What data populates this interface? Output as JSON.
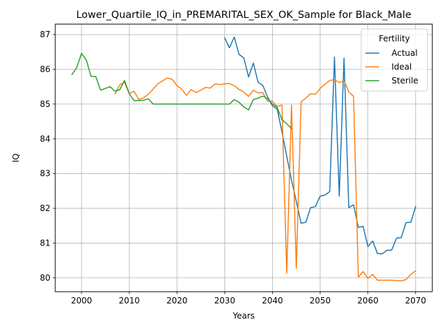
{
  "chart_data": {
    "type": "line",
    "title": "Lower_Quartile_IQ_in_PREMARITAL_SEX_OK_Sample for Black_Male",
    "xlabel": "Years",
    "ylabel": "IQ",
    "xlim": [
      1994.5,
      2073.5
    ],
    "ylim": [
      79.6,
      87.3
    ],
    "xticks": [
      2000,
      2010,
      2020,
      2030,
      2040,
      2050,
      2060,
      2070
    ],
    "yticks": [
      80,
      81,
      82,
      83,
      84,
      85,
      86,
      87
    ],
    "grid": true,
    "legend": {
      "title": "Fertility",
      "position": "top-right"
    },
    "series": [
      {
        "name": "Actual",
        "color": "#1f77b4",
        "points": [
          [
            2030,
            86.9
          ],
          [
            2031,
            86.62
          ],
          [
            2032,
            86.93
          ],
          [
            2033,
            86.43
          ],
          [
            2034,
            86.33
          ],
          [
            2035,
            85.78
          ],
          [
            2036,
            86.18
          ],
          [
            2037,
            85.63
          ],
          [
            2038,
            85.53
          ],
          [
            2039,
            85.2
          ],
          [
            2040,
            84.95
          ],
          [
            2041,
            84.85
          ],
          [
            2042,
            84.2
          ],
          [
            2043,
            83.5
          ],
          [
            2044,
            82.8
          ],
          [
            2045,
            82.2
          ],
          [
            2046,
            81.57
          ],
          [
            2047,
            81.6
          ],
          [
            2048,
            82.02
          ],
          [
            2049,
            82.05
          ],
          [
            2050,
            82.35
          ],
          [
            2051,
            82.38
          ],
          [
            2052,
            82.48
          ],
          [
            2053,
            86.35
          ],
          [
            2054,
            82.35
          ],
          [
            2055,
            86.32
          ],
          [
            2056,
            82.02
          ],
          [
            2057,
            82.1
          ],
          [
            2058,
            81.45
          ],
          [
            2059,
            81.48
          ],
          [
            2060,
            80.9
          ],
          [
            2061,
            81.06
          ],
          [
            2062,
            80.7
          ],
          [
            2063,
            80.69
          ],
          [
            2064,
            80.79
          ],
          [
            2065,
            80.8
          ],
          [
            2066,
            81.14
          ],
          [
            2067,
            81.16
          ],
          [
            2068,
            81.59
          ],
          [
            2069,
            81.6
          ],
          [
            2070,
            82.05
          ]
        ]
      },
      {
        "name": "Ideal",
        "color": "#ff7f0e",
        "points": [
          [
            2007,
            85.29
          ],
          [
            2008,
            85.55
          ],
          [
            2009,
            85.63
          ],
          [
            2010,
            85.3
          ],
          [
            2011,
            85.37
          ],
          [
            2012,
            85.13
          ],
          [
            2013,
            85.18
          ],
          [
            2014,
            85.28
          ],
          [
            2015,
            85.43
          ],
          [
            2016,
            85.58
          ],
          [
            2017,
            85.67
          ],
          [
            2018,
            85.75
          ],
          [
            2019,
            85.71
          ],
          [
            2020,
            85.53
          ],
          [
            2021,
            85.43
          ],
          [
            2022,
            85.25
          ],
          [
            2023,
            85.42
          ],
          [
            2024,
            85.33
          ],
          [
            2025,
            85.4
          ],
          [
            2026,
            85.48
          ],
          [
            2027,
            85.46
          ],
          [
            2028,
            85.58
          ],
          [
            2029,
            85.56
          ],
          [
            2030,
            85.58
          ],
          [
            2031,
            85.59
          ],
          [
            2032,
            85.53
          ],
          [
            2033,
            85.42
          ],
          [
            2034,
            85.35
          ],
          [
            2035,
            85.22
          ],
          [
            2036,
            85.4
          ],
          [
            2037,
            85.32
          ],
          [
            2038,
            85.33
          ],
          [
            2039,
            85.08
          ],
          [
            2040,
            85.08
          ],
          [
            2041,
            84.93
          ],
          [
            2042,
            84.97
          ],
          [
            2043,
            80.13
          ],
          [
            2044,
            84.97
          ],
          [
            2045,
            80.27
          ],
          [
            2046,
            85.06
          ],
          [
            2047,
            85.17
          ],
          [
            2048,
            85.3
          ],
          [
            2049,
            85.28
          ],
          [
            2050,
            85.45
          ],
          [
            2051,
            85.57
          ],
          [
            2052,
            85.68
          ],
          [
            2053,
            85.7
          ],
          [
            2054,
            85.62
          ],
          [
            2055,
            85.67
          ],
          [
            2056,
            85.35
          ],
          [
            2057,
            85.22
          ],
          [
            2058,
            80.02
          ],
          [
            2059,
            80.18
          ],
          [
            2060,
            79.98
          ],
          [
            2061,
            80.1
          ],
          [
            2062,
            79.93
          ],
          [
            2063,
            79.93
          ],
          [
            2064,
            79.93
          ],
          [
            2065,
            79.93
          ],
          [
            2066,
            79.92
          ],
          [
            2067,
            79.91
          ],
          [
            2068,
            79.95
          ],
          [
            2069,
            80.1
          ],
          [
            2070,
            80.2
          ]
        ]
      },
      {
        "name": "Sterile",
        "color": "#2ca02c",
        "points": [
          [
            1998,
            85.85
          ],
          [
            1999,
            86.05
          ],
          [
            2000,
            86.46
          ],
          [
            2001,
            86.27
          ],
          [
            2002,
            85.8
          ],
          [
            2003,
            85.79
          ],
          [
            2004,
            85.4
          ],
          [
            2005,
            85.45
          ],
          [
            2006,
            85.5
          ],
          [
            2007,
            85.37
          ],
          [
            2008,
            85.41
          ],
          [
            2009,
            85.68
          ],
          [
            2010,
            85.3
          ],
          [
            2011,
            85.1
          ],
          [
            2012,
            85.1
          ],
          [
            2013,
            85.11
          ],
          [
            2014,
            85.15
          ],
          [
            2015,
            85.0
          ],
          [
            2016,
            85.0
          ],
          [
            2017,
            85.0
          ],
          [
            2018,
            85.0
          ],
          [
            2019,
            85.0
          ],
          [
            2020,
            85.0
          ],
          [
            2021,
            85.0
          ],
          [
            2022,
            85.0
          ],
          [
            2023,
            85.0
          ],
          [
            2024,
            85.0
          ],
          [
            2025,
            85.0
          ],
          [
            2026,
            85.0
          ],
          [
            2027,
            85.0
          ],
          [
            2028,
            85.0
          ],
          [
            2029,
            85.0
          ],
          [
            2030,
            85.0
          ],
          [
            2031,
            85.0
          ],
          [
            2032,
            85.13
          ],
          [
            2033,
            85.05
          ],
          [
            2034,
            84.92
          ],
          [
            2035,
            84.83
          ],
          [
            2036,
            85.13
          ],
          [
            2037,
            85.17
          ],
          [
            2038,
            85.23
          ],
          [
            2039,
            85.15
          ],
          [
            2040,
            85.0
          ],
          [
            2041,
            84.9
          ],
          [
            2042,
            84.55
          ],
          [
            2043,
            84.43
          ],
          [
            2044,
            84.3
          ]
        ]
      }
    ]
  }
}
